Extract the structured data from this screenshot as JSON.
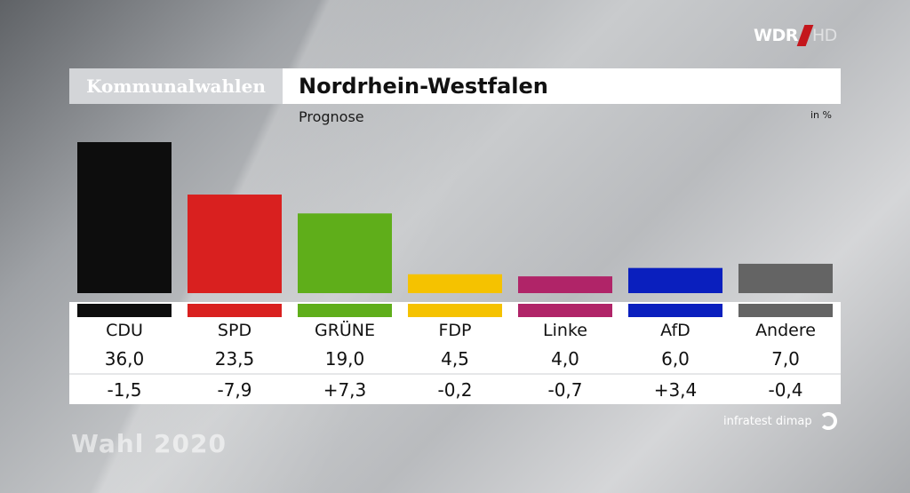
{
  "broadcaster": {
    "name": "WDR",
    "suffix": "HD"
  },
  "header": {
    "category": "Kommunalwahlen",
    "title": "Nordrhein-Westfalen",
    "subtitle": "Prognose",
    "unit": "in %"
  },
  "colors": {
    "CDU": "#0d0d0d",
    "SPD": "#d9201f",
    "GRÜNE": "#5fae1a",
    "FDP": "#f5c200",
    "Linke": "#b02468",
    "AfD": "#0a1fbe",
    "Andere": "#646464"
  },
  "chart_data": {
    "type": "bar",
    "title": "Nordrhein-Westfalen",
    "subtitle": "Prognose",
    "unit": "in %",
    "categories": [
      "CDU",
      "SPD",
      "GRÜNE",
      "FDP",
      "Linke",
      "AfD",
      "Andere"
    ],
    "values": [
      36.0,
      23.5,
      19.0,
      4.5,
      4.0,
      6.0,
      7.0
    ],
    "value_labels": [
      "36,0",
      "23,5",
      "19,0",
      "4,5",
      "4,0",
      "6,0",
      "7,0"
    ],
    "change_labels": [
      "-1,5",
      "-7,9",
      "+7,3",
      "-0,2",
      "-0,7",
      "+3,4",
      "-0,4"
    ],
    "ylim": [
      0,
      36.0
    ]
  },
  "footer": {
    "source": "infratest dimap",
    "watermark": "Wahl 2020"
  }
}
